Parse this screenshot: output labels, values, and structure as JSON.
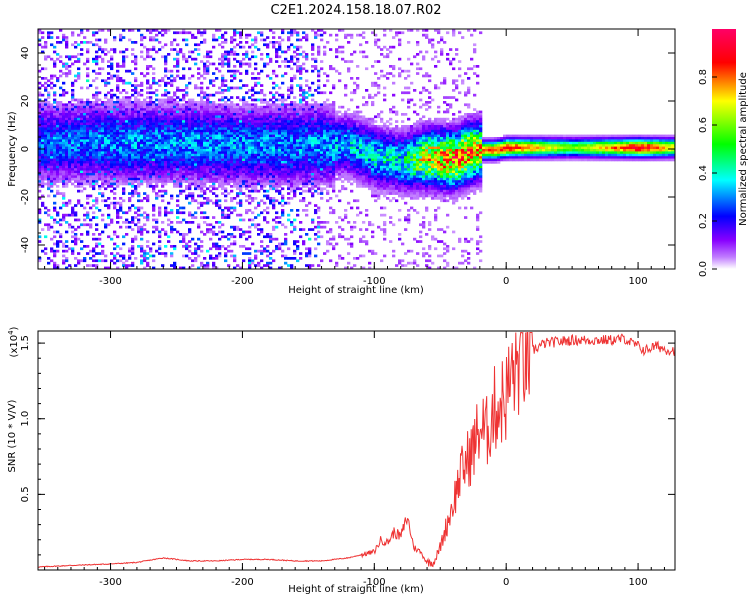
{
  "title": "C2E1.2024.158.18.07.R02",
  "chart_data": [
    {
      "type": "heatmap",
      "title": "C2E1.2024.158.18.07.R02",
      "xlabel": "Height of straight line (km)",
      "ylabel": "Frequency (Hz)",
      "xlim": [
        -355,
        128
      ],
      "ylim": [
        -50,
        50
      ],
      "xticks": [
        -300,
        -200,
        -100,
        0,
        100
      ],
      "xtick_labels": [
        "-300",
        "-200",
        "-100",
        "0",
        "100"
      ],
      "yticks": [
        -40,
        -20,
        0,
        20,
        40
      ],
      "ytick_labels": [
        "-40",
        "-20",
        "0",
        "20",
        "40"
      ],
      "grid": false,
      "colorbar": {
        "label": "Normalized spectral amplitude",
        "range": [
          0.0,
          1.0
        ],
        "ticks": [
          0.0,
          0.2,
          0.4,
          0.6,
          0.8
        ],
        "tick_labels": [
          "0.0",
          "0.2",
          "0.4",
          "0.6",
          "0.8"
        ],
        "colors": [
          "#ffffff",
          "#8800ff",
          "#0000ff",
          "#00ffff",
          "#00ff00",
          "#ffff00",
          "#ff0000",
          "#ff00aa"
        ]
      },
      "ridge": {
        "description_points_x": [
          -355,
          -300,
          -250,
          -200,
          -150,
          -120,
          -100,
          -80,
          -60,
          -40,
          -30,
          -20,
          -10,
          0,
          50,
          100,
          128
        ],
        "frequency_center": [
          3,
          3,
          3,
          2,
          2,
          2,
          -3,
          -5,
          -3,
          -4,
          -1,
          0,
          0,
          1,
          1,
          1,
          1
        ],
        "peak_amplitude": [
          0.3,
          0.35,
          0.35,
          0.35,
          0.35,
          0.4,
          0.45,
          0.45,
          0.8,
          0.9,
          0.9,
          0.8,
          0.85,
          0.9,
          0.6,
          0.95,
          0.7
        ]
      }
    },
    {
      "type": "line",
      "xlabel": "Height of straight line (km)",
      "ylabel": "SNR (10 * V/V)",
      "y_multiplier_label": "(x10",
      "y_multiplier_exponent": "4",
      "y_multiplier_close": ")",
      "xlim": [
        -355,
        128
      ],
      "ylim": [
        0.0,
        1.58
      ],
      "xticks": [
        -300,
        -200,
        -100,
        0,
        100
      ],
      "xtick_labels": [
        "-300",
        "-200",
        "-100",
        "0",
        "100"
      ],
      "yticks": [
        0.5,
        1.0,
        1.5
      ],
      "ytick_labels": [
        "0.5",
        "1.0",
        "1.5"
      ],
      "grid": false,
      "series": [
        {
          "color": "#ee3333",
          "x": [
            -355,
            -330,
            -300,
            -280,
            -260,
            -240,
            -220,
            -200,
            -180,
            -160,
            -140,
            -120,
            -100,
            -95,
            -90,
            -85,
            -80,
            -75,
            -70,
            -65,
            -60,
            -55,
            -50,
            -45,
            -40,
            -35,
            -30,
            -25,
            -20,
            -15,
            -10,
            -5,
            0,
            5,
            10,
            15,
            20,
            25,
            30,
            40,
            50,
            60,
            70,
            80,
            90,
            95,
            100,
            105,
            110,
            115,
            120,
            128
          ],
          "y": [
            0.02,
            0.03,
            0.04,
            0.05,
            0.08,
            0.06,
            0.06,
            0.07,
            0.07,
            0.06,
            0.06,
            0.08,
            0.12,
            0.2,
            0.18,
            0.25,
            0.22,
            0.35,
            0.15,
            0.12,
            0.05,
            0.05,
            0.15,
            0.3,
            0.45,
            0.62,
            0.72,
            0.8,
            0.95,
            0.9,
            1.05,
            1.1,
            1.15,
            1.3,
            1.38,
            1.42,
            1.45,
            1.48,
            1.5,
            1.51,
            1.52,
            1.52,
            1.52,
            1.52,
            1.53,
            1.5,
            1.48,
            1.45,
            1.47,
            1.48,
            1.46,
            1.45
          ]
        }
      ]
    }
  ]
}
